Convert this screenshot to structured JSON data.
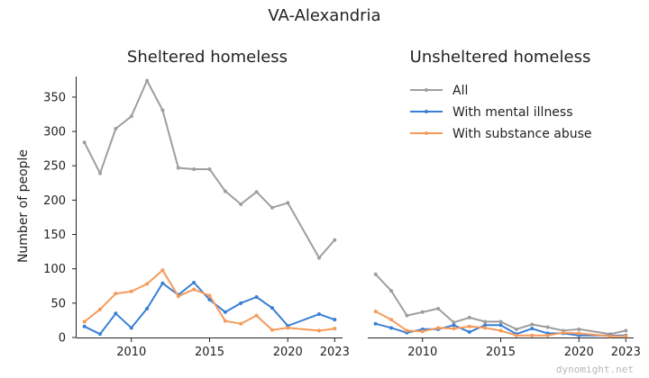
{
  "chart_data": {
    "type": "line",
    "title": "VA-Alexandria",
    "ylabel": "Number of people",
    "watermark": "dynomight.net",
    "ylim": [
      0,
      380
    ],
    "yticks": [
      0,
      50,
      100,
      150,
      200,
      250,
      300,
      350
    ],
    "xlim": [
      2006.5,
      2023.5
    ],
    "xticks": [
      2010,
      2015,
      2020,
      2023
    ],
    "legend_position": "top-right of second panel",
    "colors": {
      "all": "#9e9e9e",
      "mental": "#3a7fd5",
      "substance": "#f59a5a"
    },
    "legend": [
      "All",
      "With mental illness",
      "With substance abuse"
    ],
    "panels": [
      {
        "title": "Sheltered homeless",
        "x": [
          2007,
          2008,
          2009,
          2010,
          2011,
          2012,
          2013,
          2014,
          2015,
          2016,
          2017,
          2018,
          2019,
          2020,
          2022,
          2023
        ],
        "series": [
          {
            "name": "All",
            "values": [
              284,
              239,
              304,
              322,
              374,
              331,
              247,
              245,
              245,
              213,
              194,
              212,
              189,
              196,
              116,
              142
            ]
          },
          {
            "name": "With mental illness",
            "values": [
              16,
              5,
              35,
              14,
              42,
              79,
              62,
              80,
              55,
              37,
              50,
              59,
              43,
              17,
              34,
              26
            ]
          },
          {
            "name": "With substance abuse",
            "values": [
              23,
              41,
              64,
              67,
              78,
              98,
              60,
              70,
              61,
              24,
              20,
              32,
              11,
              14,
              10,
              13
            ]
          }
        ]
      },
      {
        "title": "Unsheltered homeless",
        "x": [
          2007,
          2008,
          2009,
          2010,
          2011,
          2012,
          2013,
          2014,
          2015,
          2016,
          2017,
          2018,
          2019,
          2020,
          2022,
          2023
        ],
        "series": [
          {
            "name": "All",
            "values": [
              92,
              68,
              32,
              37,
              42,
              22,
              29,
              23,
              23,
              12,
              19,
              15,
              10,
              12,
              5,
              10
            ]
          },
          {
            "name": "With mental illness",
            "values": [
              20,
              14,
              7,
              12,
              12,
              18,
              8,
              18,
              18,
              5,
              13,
              6,
              6,
              3,
              3,
              3
            ]
          },
          {
            "name": "With substance abuse",
            "values": [
              38,
              26,
              10,
              9,
              14,
              13,
              16,
              14,
              10,
              3,
              3,
              3,
              7,
              6,
              2,
              2
            ]
          }
        ]
      }
    ]
  }
}
